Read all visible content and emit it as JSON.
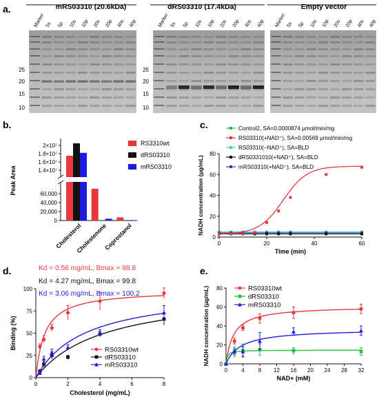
{
  "panel_a": {
    "label": "a.",
    "gels": [
      {
        "title": "mRS03310 (20.6kDa)",
        "lanes": [
          "Marker",
          "5s",
          "5p",
          "10s",
          "10p",
          "20s",
          "20p",
          "40s",
          "40p"
        ],
        "ladder": [
          "25",
          "20",
          "15",
          "10"
        ]
      },
      {
        "title": "dRS03310 (17.4kDa)",
        "lanes": [
          "Marker",
          "5s",
          "5p",
          "10s",
          "10p",
          "20s",
          "20p",
          "40s",
          "40p"
        ],
        "ladder": [
          "25",
          "20",
          "15",
          "10"
        ]
      },
      {
        "title": "Empty vector",
        "lanes": [
          "Marker",
          "5s",
          "5p",
          "10s",
          "10p",
          "20s",
          "20p",
          "40s",
          "40p"
        ]
      }
    ]
  },
  "panel_b": {
    "label": "b."
  },
  "panel_c": {
    "label": "c."
  },
  "panel_d": {
    "label": "d."
  },
  "panel_e": {
    "label": "e."
  },
  "colors": {
    "red": "#e8383d",
    "black": "#111111",
    "blue": "#1d1de0",
    "green": "#22c13a",
    "cyan": "#3fd0c8",
    "navy": "#2f39c9"
  },
  "chart_data": [
    {
      "panel": "b",
      "type": "bar",
      "ylabel": "Peak Area",
      "categories": [
        "Cholesterol",
        "Cholestenone",
        "Coprostanol"
      ],
      "series": [
        {
          "name": "RS3310wt",
          "values": [
            17500000,
            71000,
            7000
          ]
        },
        {
          "name": "dRS03310",
          "values": [
            20500000,
            0,
            0
          ]
        },
        {
          "name": "mRS03310",
          "values": [
            18200000,
            4000,
            1000
          ]
        }
      ],
      "axis_break": {
        "lower": [
          0,
          80000
        ],
        "upper": [
          13000000,
          21000000
        ]
      },
      "yticks_lower": [
        "0",
        "20,000",
        "40,000",
        "60,000"
      ],
      "yticks_upper": [
        "1.4×10⁷",
        "1.6×10⁷",
        "1.8×10⁷",
        "2×10⁷"
      ],
      "legend": "right"
    },
    {
      "panel": "c",
      "type": "line",
      "xlabel": "Time (min)",
      "ylabel": "NADH concentration (μg/mL)",
      "xlim": [
        0,
        60
      ],
      "ylim": [
        0,
        80
      ],
      "xticks": [
        0,
        20,
        40,
        60
      ],
      "yticks": [
        0,
        20,
        40,
        60,
        80
      ],
      "x": [
        0,
        5,
        10,
        15,
        20,
        25,
        30,
        45,
        60
      ],
      "series": [
        {
          "name": "Control2, SA=0.0000874 μmol/min/mg",
          "values": [
            4,
            4,
            4,
            4,
            4,
            4,
            4,
            4,
            4
          ]
        },
        {
          "name": "RS03310(+NAD⁺), SA=0.00569 μmol/min/mg",
          "values": [
            3,
            3,
            3,
            4,
            14,
            25,
            38,
            60,
            67
          ]
        },
        {
          "name": "RS03310(−NAD⁺), SA=BLD",
          "values": [
            5,
            5,
            5,
            5,
            5,
            5,
            5,
            5,
            5
          ]
        },
        {
          "name": "dRS0331010(+NAD⁺), SA=BLD",
          "values": [
            3,
            3,
            3,
            3,
            3,
            3,
            3,
            3,
            3
          ]
        },
        {
          "name": "mRS03310(+NAD⁺), SA=BLD",
          "values": [
            4,
            4,
            4,
            4,
            4,
            4,
            4,
            4,
            4
          ]
        }
      ],
      "fit_curve": {
        "series": 1,
        "ymax": 68,
        "x50": 27,
        "k": 0.2
      },
      "legend": "top-right"
    },
    {
      "panel": "d",
      "type": "scatter",
      "xlabel": "Cholesterol (mg/mL)",
      "ylabel": "Binding (%)",
      "xlim": [
        0,
        8
      ],
      "ylim": [
        0,
        100
      ],
      "xticks": [
        0,
        2,
        4,
        6,
        8
      ],
      "yticks": [
        0,
        25,
        50,
        75,
        100
      ],
      "annotations": [
        "Kd = 0.56 mg/mL, Bmax = 98.8",
        "Kd = 4.27 mg/mL, Bmax = 99.8",
        "Kd = 3.06 mg/mL, Bmax = 100.2"
      ],
      "series": [
        {
          "name": "RS03310wt",
          "x": [
            0.25,
            0.5,
            1,
            2,
            4,
            8
          ],
          "values": [
            35,
            43,
            56,
            73,
            86,
            95
          ],
          "err": [
            3,
            4,
            4,
            8,
            10,
            6
          ],
          "kd": 0.56,
          "bmax": 98.8
        },
        {
          "name": "dRS03310",
          "x": [
            0.25,
            0.5,
            1,
            2,
            4,
            8
          ],
          "values": [
            7,
            15,
            25,
            23,
            49,
            66
          ],
          "err": [
            2,
            3,
            4,
            2,
            3,
            7
          ],
          "kd": 4.27,
          "bmax": 99.8
        },
        {
          "name": "mRS03310",
          "x": [
            0.25,
            0.5,
            1,
            2,
            4,
            8
          ],
          "values": [
            5,
            21,
            28,
            34,
            50,
            73
          ],
          "err": [
            2,
            3,
            4,
            3,
            4,
            8
          ],
          "kd": 3.06,
          "bmax": 100.2
        }
      ],
      "legend": "bottom-right"
    },
    {
      "panel": "e",
      "type": "line",
      "xlabel": "NAD+ (mM)",
      "ylabel": "NADH concentration (μg/mL)",
      "xlim": [
        0,
        32
      ],
      "ylim": [
        0,
        80
      ],
      "xticks": [
        0,
        4,
        8,
        12,
        16,
        20,
        24,
        28,
        32
      ],
      "yticks": [
        0,
        20,
        40,
        60,
        80
      ],
      "series": [
        {
          "name": "RS03310wt",
          "x": [
            0,
            2,
            4,
            8,
            16,
            32
          ],
          "values": [
            0,
            24,
            38,
            48,
            54,
            58
          ],
          "err": [
            0,
            3,
            3,
            5,
            6,
            5
          ],
          "vmax": 61,
          "km": 1.8
        },
        {
          "name": "dRS03310",
          "x": [
            0,
            2,
            4,
            8,
            16,
            32
          ],
          "values": [
            0,
            13,
            14,
            15,
            14,
            13
          ],
          "err": [
            0,
            5,
            7,
            6,
            3,
            4
          ],
          "vmax": 14.5,
          "km": 0.3
        },
        {
          "name": "mRS03310",
          "x": [
            0,
            2,
            4,
            8,
            16,
            32
          ],
          "values": [
            0,
            13,
            13,
            24,
            34,
            35
          ],
          "err": [
            0,
            3,
            5,
            9,
            4,
            5
          ],
          "vmax": 37,
          "km": 3.5
        }
      ],
      "legend": "top-left"
    }
  ]
}
